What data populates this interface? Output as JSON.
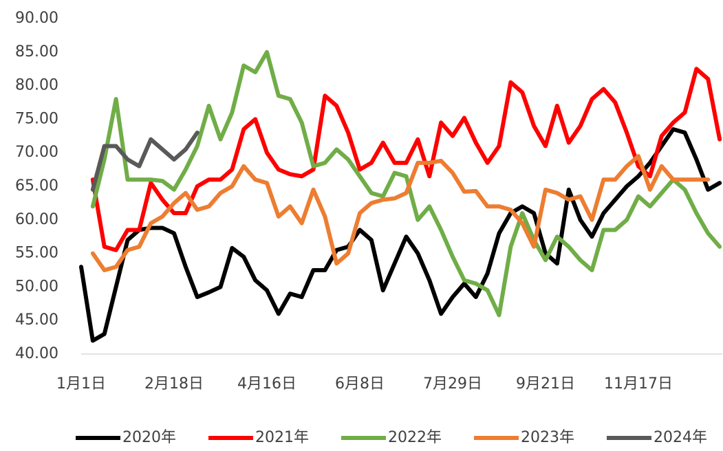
{
  "chart_data": {
    "type": "line",
    "categories": [
      "1月1日",
      null,
      null,
      null,
      null,
      null,
      null,
      null,
      "2月18日",
      null,
      null,
      null,
      null,
      null,
      null,
      null,
      "4月16日",
      null,
      null,
      null,
      null,
      null,
      null,
      null,
      "6月8日",
      null,
      null,
      null,
      null,
      null,
      null,
      null,
      "7月29日",
      null,
      null,
      null,
      null,
      null,
      null,
      null,
      "9月21日",
      null,
      null,
      null,
      null,
      null,
      null,
      null,
      "11月17日",
      null,
      null,
      null,
      null,
      null,
      null,
      null
    ],
    "series": [
      {
        "name": "2020年",
        "color": "#000000",
        "values": [
          53,
          42,
          43,
          50,
          57,
          58.5,
          58.8,
          58.8,
          58,
          53,
          48.5,
          49.2,
          50,
          55.8,
          54.5,
          51,
          49.5,
          46,
          49,
          48.5,
          52.5,
          52.5,
          55.5,
          56,
          58.5,
          57,
          49.5,
          53.5,
          57.5,
          55,
          51,
          46,
          48.5,
          50.5,
          48.5,
          52,
          58,
          61,
          62,
          61,
          55,
          53.5,
          64.5,
          60,
          57.5,
          61,
          63,
          65,
          66.5,
          68.5,
          71,
          73.5,
          73,
          69,
          64.5,
          65.5
        ]
      },
      {
        "name": "2021年",
        "color": "#ff0000",
        "values": [
          null,
          66,
          56,
          55.5,
          58.5,
          58.5,
          65.5,
          63,
          61,
          61,
          65,
          66,
          66,
          67.5,
          73.5,
          75,
          70,
          67.5,
          66.8,
          66.5,
          67.5,
          78.5,
          77,
          73,
          67.5,
          68.5,
          71.5,
          68.5,
          68.5,
          72,
          66.5,
          74.5,
          72.5,
          75.2,
          71.5,
          68.5,
          71,
          80.5,
          79,
          74,
          71,
          77,
          71.5,
          74,
          78,
          79.5,
          77.5,
          73,
          68,
          66.5,
          72.5,
          74.5,
          76,
          82.5,
          81,
          72
        ]
      },
      {
        "name": "2022年",
        "color": "#70ad47",
        "values": [
          null,
          62,
          69,
          78,
          66,
          66,
          66,
          65.8,
          64.5,
          67.5,
          71,
          77,
          72,
          76,
          83,
          82,
          85,
          78.5,
          78,
          74.5,
          68,
          68.5,
          70.5,
          69,
          66.5,
          64,
          63.5,
          67,
          66.5,
          60,
          62,
          58.5,
          54.5,
          51,
          50.5,
          49.5,
          45.8,
          56,
          61,
          57,
          54,
          57.5,
          56,
          54,
          52.5,
          58.5,
          58.5,
          60,
          63.5,
          62,
          64,
          66,
          64.5,
          61,
          58,
          56
        ]
      },
      {
        "name": "2023年",
        "color": "#ed7d31",
        "values": [
          null,
          55,
          52.5,
          53,
          55.5,
          56,
          59.5,
          60.5,
          62.5,
          64,
          61.5,
          62,
          64,
          65,
          68,
          66,
          65.5,
          60.5,
          62,
          59.5,
          64.5,
          60.5,
          53.5,
          55,
          61,
          62.5,
          63,
          63.2,
          64,
          68.5,
          68.5,
          68.8,
          67,
          64.2,
          64.3,
          62,
          62,
          61.5,
          59.5,
          56,
          64.5,
          64,
          63,
          63.5,
          60,
          66,
          66,
          68,
          69.5,
          64.5,
          68,
          66,
          66,
          66,
          66,
          null
        ]
      },
      {
        "name": "2024年",
        "color": "#595959",
        "values": [
          null,
          64.5,
          71,
          71,
          69,
          68,
          72,
          70.5,
          69,
          70.5,
          73,
          null,
          null,
          null,
          null,
          null,
          null,
          null,
          null,
          null,
          null,
          null,
          null,
          null,
          null,
          null,
          null,
          null,
          null,
          null,
          null,
          null,
          null,
          null,
          null,
          null,
          null,
          null,
          null,
          null,
          null,
          null,
          null,
          null,
          null,
          null,
          null,
          null,
          null,
          null,
          null,
          null,
          null,
          null,
          null,
          null
        ]
      }
    ],
    "ylim": [
      40,
      90
    ],
    "yticks": [
      {
        "value": 40,
        "label": "40.00"
      },
      {
        "value": 45,
        "label": "45.00"
      },
      {
        "value": 50,
        "label": "50.00"
      },
      {
        "value": 55,
        "label": "55.00"
      },
      {
        "value": 60,
        "label": "60.00"
      },
      {
        "value": 65,
        "label": "65.00"
      },
      {
        "value": 70,
        "label": "70.00"
      },
      {
        "value": 75,
        "label": "75.00"
      },
      {
        "value": 80,
        "label": "80.00"
      },
      {
        "value": 85,
        "label": "85.00"
      },
      {
        "value": 90,
        "label": "90.00"
      }
    ],
    "legend": "bottom"
  }
}
